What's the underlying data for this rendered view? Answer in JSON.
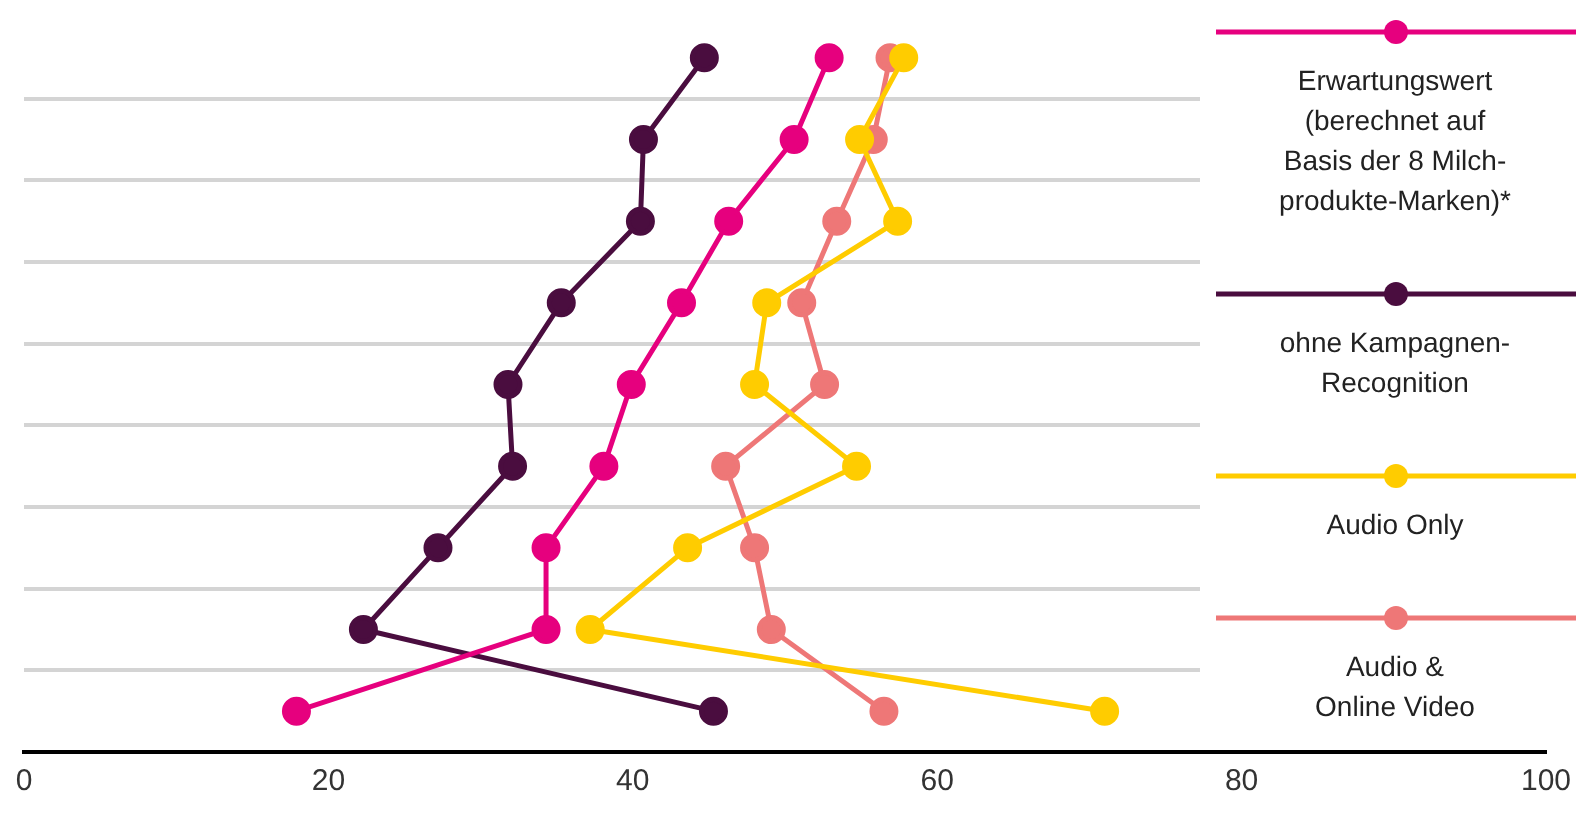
{
  "chart_data": {
    "type": "line",
    "orientation": "horizontal",
    "categories": [
      null,
      null,
      null,
      null,
      null,
      null,
      null,
      null,
      null
    ],
    "series": [
      {
        "name": "Erwartungswert\n(berechnet auf\nBasis der 8 Milch-\nprodukte-Marken)*",
        "color": "#e6007e",
        "values": [
          52.9,
          50.6,
          46.3,
          43.2,
          39.9,
          38.1,
          34.3,
          34.3,
          17.9
        ]
      },
      {
        "name": "ohne Kampagnen-\nRecognition",
        "color": "#4a0d3f",
        "values": [
          44.7,
          40.7,
          40.5,
          35.3,
          31.8,
          32.1,
          27.2,
          22.3,
          45.3
        ]
      },
      {
        "name": "Audio Only",
        "color": "#ffcc00",
        "values": [
          57.8,
          54.9,
          57.4,
          48.8,
          48.0,
          54.7,
          43.6,
          37.2,
          71.0
        ]
      },
      {
        "name": "Audio &\nOnline Video",
        "color": "#ee7777",
        "values": [
          56.9,
          55.8,
          53.4,
          51.1,
          52.6,
          46.1,
          48.0,
          49.1,
          56.5
        ]
      }
    ],
    "xlim": [
      0,
      100
    ],
    "xticks": [
      0,
      20,
      40,
      60,
      80,
      100
    ],
    "grid": "y",
    "legend": "right",
    "marker": "circle",
    "line_style": "solid",
    "tick_labels": "x"
  }
}
